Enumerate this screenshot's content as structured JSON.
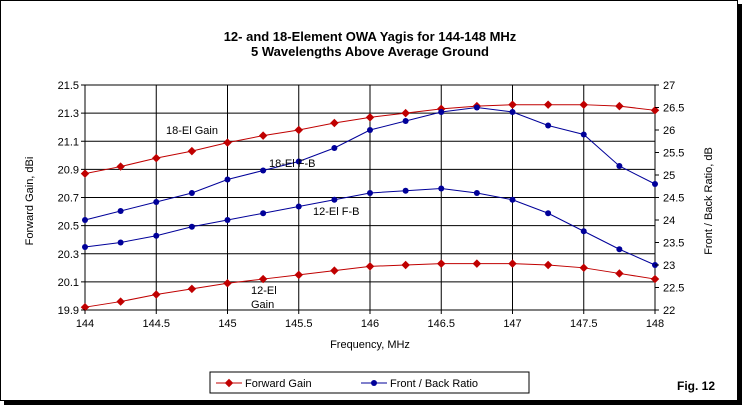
{
  "chart_data": {
    "type": "line",
    "title": "12- and 18-Element OWA Yagis for 144-148 MHz",
    "subtitle": "5 Wavelengths Above Average Ground",
    "xlabel": "Frequency, MHz",
    "ylabel_left": "Forward Gain, dBi",
    "ylabel_right": "Front / Back Ratio, dB",
    "xlim": [
      144,
      148
    ],
    "ylim_left": [
      19.9,
      21.5
    ],
    "ylim_right": [
      22,
      27
    ],
    "x_ticks": [
      "144",
      "144.5",
      "145",
      "145.5",
      "146",
      "146.5",
      "147",
      "147.5",
      "148"
    ],
    "y_left_ticks": [
      "19.9",
      "20.1",
      "20.3",
      "20.5",
      "20.7",
      "20.9",
      "21.1",
      "21.3",
      "21.5"
    ],
    "y_right_ticks": [
      "22",
      "22.5",
      "23",
      "23.5",
      "24",
      "24.5",
      "25",
      "25.5",
      "26",
      "26.5",
      "27"
    ],
    "grid": true,
    "x": [
      144,
      144.25,
      144.5,
      144.75,
      145,
      145.25,
      145.5,
      145.75,
      146,
      146.25,
      146.5,
      146.75,
      147,
      147.25,
      147.5,
      147.75,
      148
    ],
    "series": [
      {
        "name": "18-El Gain",
        "legend_group": "Forward Gain",
        "axis": "left",
        "color": "#c00000",
        "values": [
          20.87,
          20.92,
          20.98,
          21.03,
          21.09,
          21.14,
          21.18,
          21.23,
          21.27,
          21.3,
          21.33,
          21.35,
          21.36,
          21.36,
          21.36,
          21.35,
          21.32
        ]
      },
      {
        "name": "12-El Gain",
        "legend_group": "Forward Gain",
        "axis": "left",
        "color": "#c00000",
        "values": [
          19.92,
          19.96,
          20.01,
          20.05,
          20.09,
          20.12,
          20.15,
          20.18,
          20.21,
          20.22,
          20.23,
          20.23,
          20.23,
          20.22,
          20.2,
          20.16,
          20.12
        ]
      },
      {
        "name": "18-El F-B",
        "legend_group": "Front / Back Ratio",
        "axis": "right",
        "color": "#000099",
        "values": [
          24.0,
          24.2,
          24.4,
          24.6,
          24.9,
          25.1,
          25.3,
          25.6,
          26.0,
          26.2,
          26.4,
          26.5,
          26.4,
          26.1,
          25.9,
          25.2,
          24.8
        ]
      },
      {
        "name": "12-El F-B",
        "legend_group": "Front / Back Ratio",
        "axis": "right",
        "color": "#000099",
        "values": [
          23.4,
          23.5,
          23.65,
          23.85,
          24.0,
          24.15,
          24.3,
          24.45,
          24.6,
          24.65,
          24.7,
          24.6,
          24.45,
          24.15,
          23.75,
          23.35,
          23.0
        ]
      }
    ],
    "annotations": [
      {
        "text": "18-El Gain",
        "series": "18-El Gain"
      },
      {
        "text": "18-El F-B",
        "series": "18-El F-B"
      },
      {
        "text": "12-El F-B",
        "series": "12-El F-B"
      },
      {
        "text": "12-El",
        "series": "12-El Gain"
      },
      {
        "text": "Gain",
        "series": "12-El Gain"
      }
    ],
    "legend": {
      "placement": "bottom",
      "entries": [
        {
          "label": "Forward Gain",
          "color": "#c00000"
        },
        {
          "label": "Front / Back Ratio",
          "color": "#000099"
        }
      ]
    }
  },
  "figure_label": "Fig. 12"
}
